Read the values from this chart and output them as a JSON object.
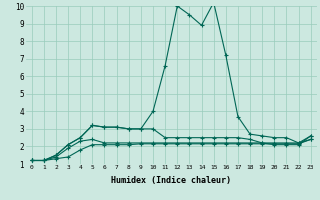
{
  "xlabel": "Humidex (Indice chaleur)",
  "background_color": "#cce8e0",
  "grid_color": "#99ccbb",
  "line_color": "#006655",
  "xlim": [
    -0.5,
    23.5
  ],
  "ylim": [
    1,
    10
  ],
  "xticks": [
    0,
    1,
    2,
    3,
    4,
    5,
    6,
    7,
    8,
    9,
    10,
    11,
    12,
    13,
    14,
    15,
    16,
    17,
    18,
    19,
    20,
    21,
    22,
    23
  ],
  "yticks": [
    1,
    2,
    3,
    4,
    5,
    6,
    7,
    8,
    9,
    10
  ],
  "series": [
    [
      1.2,
      1.2,
      1.3,
      1.4,
      1.8,
      2.1,
      2.1,
      2.1,
      2.1,
      2.15,
      2.15,
      2.15,
      2.15,
      2.15,
      2.15,
      2.15,
      2.15,
      2.15,
      2.15,
      2.15,
      2.15,
      2.15,
      2.15,
      2.4
    ],
    [
      1.2,
      1.2,
      1.4,
      1.9,
      2.3,
      2.4,
      2.2,
      2.2,
      2.2,
      2.2,
      2.2,
      2.2,
      2.2,
      2.2,
      2.2,
      2.2,
      2.2,
      2.2,
      2.2,
      2.2,
      2.2,
      2.2,
      2.2,
      2.4
    ],
    [
      1.2,
      1.2,
      1.5,
      2.1,
      2.5,
      3.2,
      3.1,
      3.1,
      3.0,
      3.0,
      3.0,
      2.5,
      2.5,
      2.5,
      2.5,
      2.5,
      2.5,
      2.5,
      2.4,
      2.2,
      2.1,
      2.1,
      2.1,
      2.6
    ],
    [
      1.2,
      1.2,
      1.5,
      2.1,
      2.5,
      3.2,
      3.1,
      3.1,
      3.0,
      3.0,
      4.0,
      6.6,
      10.0,
      9.5,
      8.9,
      10.2,
      7.2,
      3.7,
      2.7,
      2.6,
      2.5,
      2.5,
      2.2,
      2.6
    ]
  ]
}
